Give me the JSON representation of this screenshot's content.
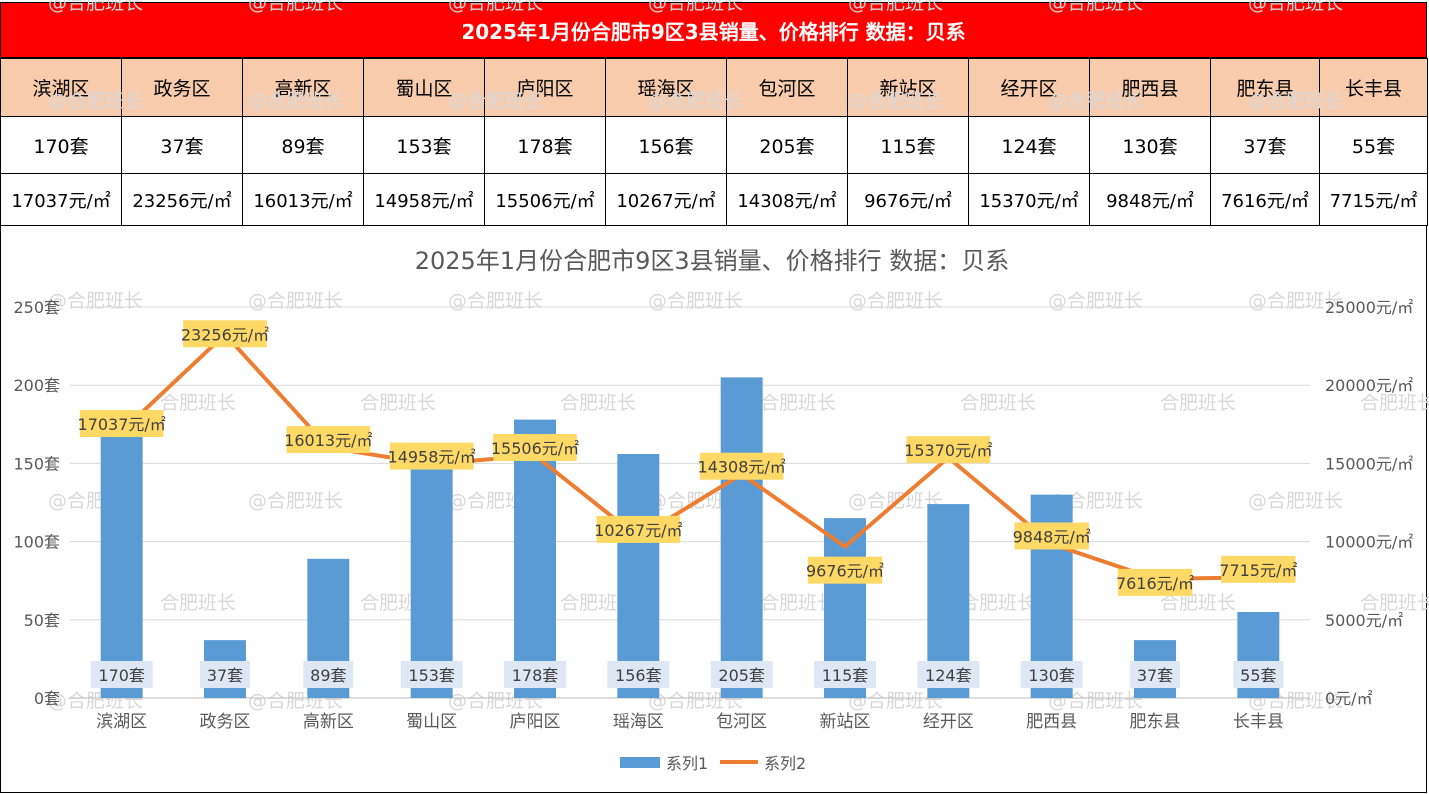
{
  "banner_title": "2025年1月份合肥市9区3县销量、价格排行  数据：贝系",
  "table": {
    "districts": [
      "滨湖区",
      "政务区",
      "高新区",
      "蜀山区",
      "庐阳区",
      "瑶海区",
      "包河区",
      "新站区",
      "经开区",
      "肥西县",
      "肥东县",
      "长丰县"
    ],
    "sales": [
      "170套",
      "37套",
      "89套",
      "153套",
      "178套",
      "156套",
      "205套",
      "115套",
      "124套",
      "130套",
      "37套",
      "55套"
    ],
    "prices": [
      "17037元/㎡",
      "23256元/㎡",
      "16013元/㎡",
      "14958元/㎡",
      "15506元/㎡",
      "10267元/㎡",
      "14308元/㎡",
      "9676元/㎡",
      "15370元/㎡",
      "9848元/㎡",
      "7616元/㎡",
      "7715元/㎡"
    ]
  },
  "watermark_text": "@合肥班长",
  "watermark_text_alt": "合肥班长",
  "colors": {
    "banner": "#ff0000",
    "header_row": "#f8cbad",
    "bar": "#5b9bd5",
    "line": "#ed7d31",
    "line_label_bg": "#ffd966",
    "bar_label_bg": "#dde8f4"
  },
  "chart_data": {
    "type": "bar+line",
    "title": "2025年1月份合肥市9区3县销量、价格排行  数据：贝系",
    "categories": [
      "滨湖区",
      "政务区",
      "高新区",
      "蜀山区",
      "庐阳区",
      "瑶海区",
      "包河区",
      "新站区",
      "经开区",
      "肥西县",
      "肥东县",
      "长丰县"
    ],
    "series": [
      {
        "name": "系列1",
        "type": "bar",
        "axis": "left",
        "unit": "套",
        "values": [
          170,
          37,
          89,
          153,
          178,
          156,
          205,
          115,
          124,
          130,
          37,
          55
        ]
      },
      {
        "name": "系列2",
        "type": "line",
        "axis": "right",
        "unit": "元/㎡",
        "values": [
          17037,
          23256,
          16013,
          14958,
          15506,
          10267,
          14308,
          9676,
          15370,
          9848,
          7616,
          7715
        ]
      }
    ],
    "left_axis": {
      "min": 0,
      "max": 250,
      "step": 50,
      "ticks": [
        "0套",
        "50套",
        "100套",
        "150套",
        "200套",
        "250套"
      ]
    },
    "right_axis": {
      "min": 0,
      "max": 25000,
      "step": 5000,
      "ticks": [
        "0元/㎡",
        "5000元/㎡",
        "10000元/㎡",
        "15000元/㎡",
        "20000元/㎡",
        "25000元/㎡"
      ]
    },
    "legend": {
      "position": "bottom",
      "entries": [
        "系列1",
        "系列2"
      ]
    },
    "grid": true
  }
}
